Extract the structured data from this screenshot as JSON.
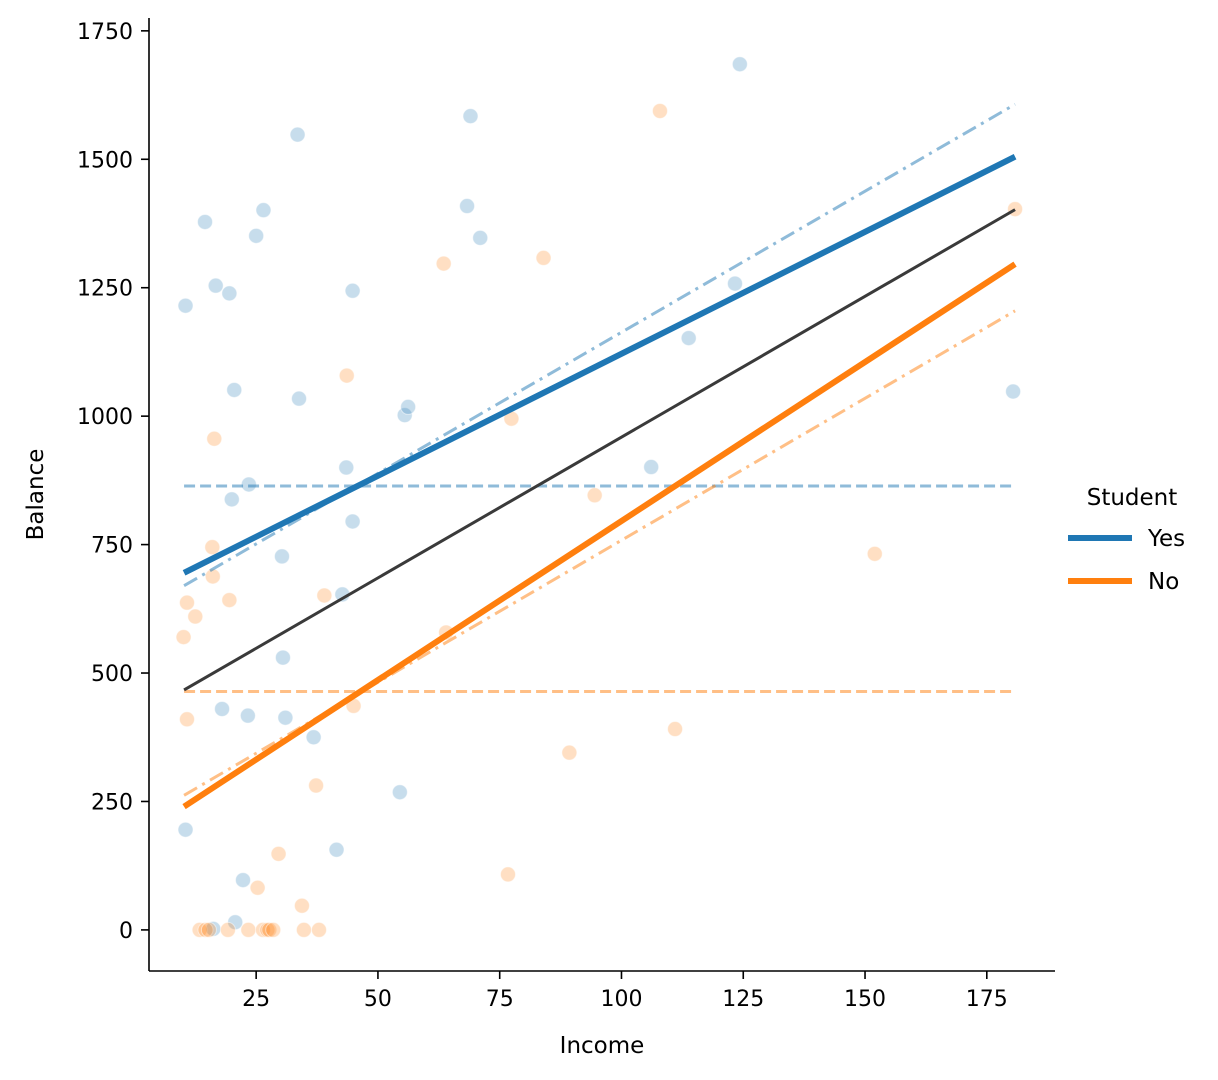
{
  "chart_data": {
    "type": "scatter",
    "title": "",
    "xlabel": "Income",
    "ylabel": "Balance",
    "xlim": [
      3,
      189
    ],
    "ylim": [
      -80,
      1775
    ],
    "xticks": [
      25,
      50,
      75,
      100,
      125,
      150,
      175
    ],
    "yticks": [
      0,
      250,
      500,
      750,
      1000,
      1250,
      1500,
      1750
    ],
    "grid": false,
    "legend": {
      "title": "Student",
      "placement": "right"
    },
    "series": [
      {
        "name": "Yes",
        "color": "#1f77b4",
        "points": [
          [
            10.5,
            1215
          ],
          [
            14.5,
            1378
          ],
          [
            16.7,
            1254
          ],
          [
            19.5,
            1239
          ],
          [
            20.5,
            1051
          ],
          [
            20,
            838
          ],
          [
            23.5,
            867
          ],
          [
            25,
            1351
          ],
          [
            26.5,
            1401
          ],
          [
            30.3,
            727
          ],
          [
            30.5,
            530
          ],
          [
            31,
            413
          ],
          [
            18,
            430
          ],
          [
            23.3,
            417
          ],
          [
            22.3,
            97
          ],
          [
            20.7,
            15
          ],
          [
            16.2,
            2
          ],
          [
            10.5,
            195
          ],
          [
            33.5,
            1548
          ],
          [
            33.8,
            1034
          ],
          [
            44.8,
            1244
          ],
          [
            43.5,
            900
          ],
          [
            44.8,
            795
          ],
          [
            42.7,
            653
          ],
          [
            41.5,
            156
          ],
          [
            36.8,
            375
          ],
          [
            54.5,
            268
          ],
          [
            55.5,
            1002
          ],
          [
            56.2,
            1018
          ],
          [
            68.3,
            1409
          ],
          [
            69,
            1584
          ],
          [
            71,
            1347
          ],
          [
            106.1,
            901
          ],
          [
            113.8,
            1152
          ],
          [
            123.3,
            1258
          ],
          [
            124.3,
            1685
          ],
          [
            180.4,
            1048
          ]
        ],
        "fit_line": {
          "x": [
            10.2,
            180.8
          ],
          "y": [
            695,
            1505
          ]
        },
        "dashdot_line": {
          "x": [
            10.2,
            180.8
          ],
          "y": [
            670,
            1607
          ]
        },
        "mean_line": {
          "x": [
            10.2,
            180.8
          ],
          "y": [
            864,
            864
          ]
        }
      },
      {
        "name": "No",
        "color": "#ff7f0e",
        "points": [
          [
            10.1,
            570
          ],
          [
            10.8,
            637
          ],
          [
            12.5,
            610
          ],
          [
            10.8,
            410
          ],
          [
            16,
            745
          ],
          [
            16.1,
            688
          ],
          [
            16.4,
            956
          ],
          [
            19.5,
            642
          ],
          [
            13.4,
            0
          ],
          [
            14.6,
            0
          ],
          [
            15.3,
            0
          ],
          [
            19.2,
            0
          ],
          [
            23.4,
            0
          ],
          [
            25.3,
            82
          ],
          [
            26.4,
            0
          ],
          [
            27.3,
            0
          ],
          [
            27.7,
            0
          ],
          [
            28.5,
            0
          ],
          [
            29.6,
            148
          ],
          [
            34.4,
            47
          ],
          [
            34.8,
            0
          ],
          [
            37.9,
            0
          ],
          [
            37.3,
            281
          ],
          [
            39,
            651
          ],
          [
            43.6,
            1079
          ],
          [
            45,
            436
          ],
          [
            63.5,
            1297
          ],
          [
            64,
            579
          ],
          [
            77.4,
            995
          ],
          [
            76.7,
            108
          ],
          [
            84,
            1308
          ],
          [
            89.3,
            345
          ],
          [
            94.5,
            846
          ],
          [
            107.9,
            1594
          ],
          [
            111,
            391
          ],
          [
            152,
            732
          ],
          [
            180.8,
            1403
          ]
        ],
        "fit_line": {
          "x": [
            10.2,
            180.8
          ],
          "y": [
            240,
            1296
          ]
        },
        "dashdot_line": {
          "x": [
            10.2,
            180.8
          ],
          "y": [
            262,
            1205
          ]
        },
        "mean_line": {
          "x": [
            10.2,
            180.8
          ],
          "y": [
            464,
            464
          ]
        }
      }
    ],
    "overall_fit": {
      "color": "#3a3a3a",
      "x": [
        10.2,
        180.8
      ],
      "y": [
        467,
        1402
      ]
    }
  }
}
